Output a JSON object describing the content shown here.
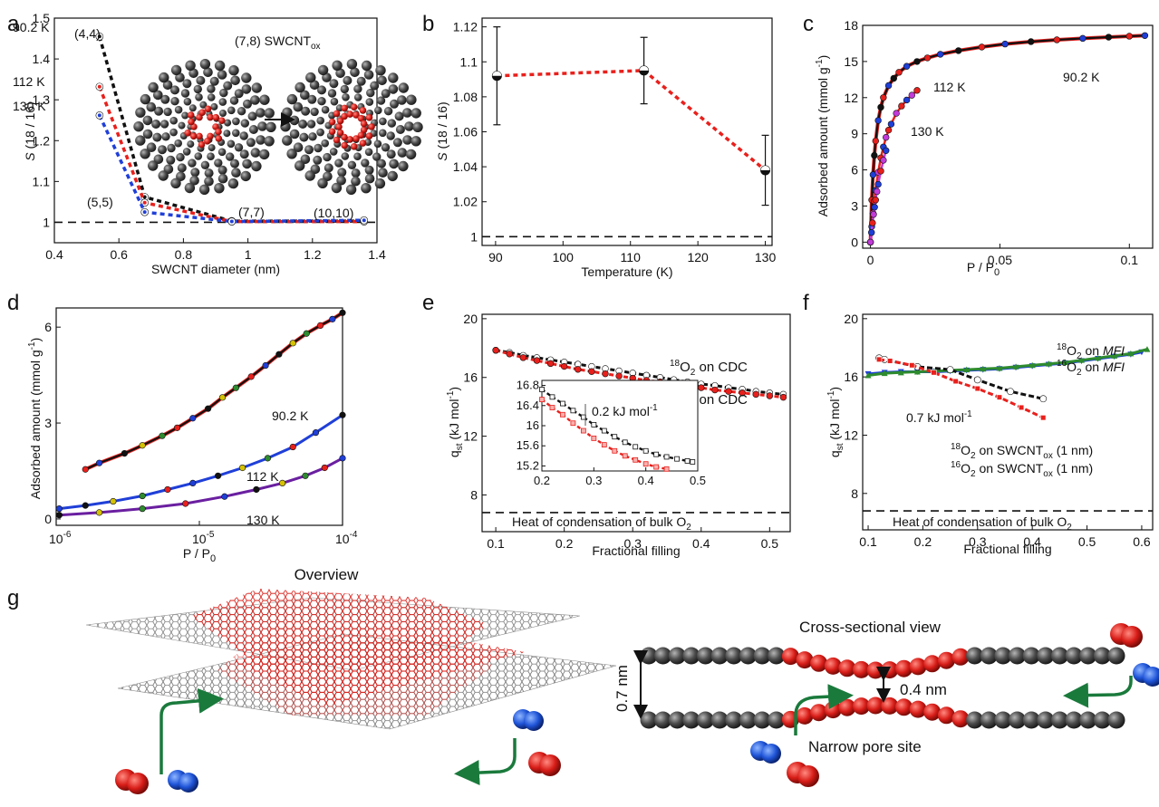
{
  "colors": {
    "black": "#111111",
    "red": "#e8201c",
    "blue": "#1f3fd8",
    "purple": "#6a1fa0",
    "magenta": "#c23ad9",
    "green": "#1c7a3a",
    "greenArrow": "#1a7a3c",
    "grey": "#8a8a8a",
    "lightGreen": "#2e8b2e"
  },
  "panels": {
    "a": {
      "letter": "a"
    },
    "b": {
      "letter": "b"
    },
    "c": {
      "letter": "c"
    },
    "d": {
      "letter": "d"
    },
    "e": {
      "letter": "e"
    },
    "f": {
      "letter": "f"
    },
    "g": {
      "letter": "g"
    }
  },
  "chart_data": [
    {
      "id": "a",
      "type": "scatter",
      "xlabel": "SWCNT diameter (nm)",
      "ylabel": "S (18 / 16)",
      "xlim": [
        0.4,
        1.4
      ],
      "ylim": [
        0.95,
        1.5
      ],
      "xticks": [
        "0.4",
        "0.6",
        "0.8",
        "1",
        "1.2",
        "1.4"
      ],
      "xtickvals": [
        0.4,
        0.6,
        0.8,
        1.0,
        1.2,
        1.4
      ],
      "yticks": [
        "1",
        "1.1",
        "1.2",
        "1.3",
        "1.4",
        "1.5"
      ],
      "ytickvals": [
        1.0,
        1.1,
        1.2,
        1.3,
        1.4,
        1.5
      ],
      "x": [
        0.54,
        0.68,
        0.95,
        1.36
      ],
      "series": [
        {
          "name": "90.2 K",
          "color": "#111111",
          "values": [
            1.455,
            1.062,
            1.003,
            1.003
          ]
        },
        {
          "name": "112 K",
          "color": "#e8201c",
          "values": [
            1.332,
            1.048,
            1.002,
            1.002
          ]
        },
        {
          "name": "130 K",
          "color": "#1f3fd8",
          "values": [
            1.262,
            1.025,
            1.002,
            1.005
          ]
        }
      ],
      "point_labels": [
        "(4,4)",
        "(5,5)",
        "(7,7)",
        "(10,10)"
      ],
      "reference_line": 1.0,
      "inset_label_main": "(7,8) SWCNT",
      "inset_label_sub": "ox"
    },
    {
      "id": "b",
      "type": "scatter",
      "xlabel": "Temperature (K)",
      "ylabel": "S (18 / 16)",
      "xlim": [
        88,
        131
      ],
      "ylim": [
        0.995,
        1.125
      ],
      "xticks": [
        "90",
        "100",
        "110",
        "120",
        "130"
      ],
      "xtickvals": [
        90,
        100,
        110,
        120,
        130
      ],
      "yticks": [
        "1",
        "1.02",
        "1.04",
        "1.06",
        "1.08",
        "1.1",
        "1.12"
      ],
      "ytickvals": [
        1.0,
        1.02,
        1.04,
        1.06,
        1.08,
        1.1,
        1.12
      ],
      "x": [
        90.2,
        112,
        130
      ],
      "values": [
        1.092,
        1.095,
        1.038
      ],
      "errors": [
        0.028,
        0.019,
        0.02
      ],
      "reference_line": 1.0
    },
    {
      "id": "c",
      "type": "line",
      "xlabel": "P / P",
      "xlabel_sub": "0",
      "ylabel": "Adsorbed amount (mmol g",
      "ylabel_sup": "-1",
      "ylabel_end": ")",
      "xlim": [
        -0.003,
        0.109
      ],
      "ylim": [
        -0.5,
        18
      ],
      "xticks": [
        "0",
        "0.05",
        "0.1"
      ],
      "xtickvals": [
        0,
        0.05,
        0.1
      ],
      "yticks": [
        "0",
        "3",
        "6",
        "9",
        "12",
        "15",
        "18"
      ],
      "ytickvals": [
        0,
        3,
        6,
        9,
        12,
        15,
        18
      ],
      "series": [
        {
          "name": "90.2 K",
          "color": "#111111",
          "x": [
            0,
            0.0005,
            0.001,
            0.0015,
            0.002,
            0.003,
            0.004,
            0.005,
            0.007,
            0.009,
            0.011,
            0.014,
            0.018,
            0.022,
            0.027,
            0.034,
            0.043,
            0.052,
            0.062,
            0.072,
            0.082,
            0.092,
            0.1,
            0.106
          ],
          "values": [
            0,
            3.5,
            5.6,
            7.2,
            8.4,
            10.1,
            11.2,
            12.0,
            13.0,
            13.6,
            14.1,
            14.6,
            15.0,
            15.3,
            15.6,
            15.9,
            16.2,
            16.45,
            16.65,
            16.8,
            16.92,
            17.02,
            17.1,
            17.15
          ]
        },
        {
          "name": "112 K",
          "color": "#e8201c",
          "x": [
            0,
            0.0005,
            0.001,
            0.0015,
            0.002,
            0.003,
            0.004,
            0.005,
            0.006,
            0.007,
            0.008,
            0.01,
            0.012,
            0.014,
            0.016,
            0.018
          ],
          "values": [
            0,
            1.3,
            2.4,
            3.4,
            4.3,
            5.8,
            7.0,
            7.9,
            8.7,
            9.3,
            9.8,
            10.7,
            11.3,
            11.8,
            12.2,
            12.6
          ]
        },
        {
          "name": "130 K",
          "color": "#c23ad9",
          "x": [
            0,
            0.0004,
            0.0008,
            0.0012,
            0.0016,
            0.002,
            0.0025,
            0.003,
            0.004,
            0.005,
            0.006
          ],
          "values": [
            0,
            0.8,
            1.6,
            2.3,
            2.9,
            3.5,
            4.2,
            4.8,
            5.9,
            6.8,
            7.6
          ]
        }
      ],
      "labels": [
        "90.2 K",
        "112 K",
        "130 K"
      ]
    },
    {
      "id": "d",
      "type": "line",
      "xlabel": "P / P",
      "xlabel_sub": "0",
      "ylabel": "Adsorbed amount (mmol g",
      "ylabel_sup": "-1",
      "ylabel_end": ")",
      "xscale": "log",
      "xlim": [
        1e-06,
        0.0001
      ],
      "ylim": [
        -0.2,
        6.6
      ],
      "xticks": [
        "10",
        "10",
        "10"
      ],
      "xtick_exps": [
        "-6",
        "-5",
        "-4"
      ],
      "xtickvals": [
        1e-06,
        1e-05,
        0.0001
      ],
      "yticks": [
        "0",
        "3",
        "6"
      ],
      "ytickvals": [
        0,
        3,
        6
      ],
      "series": [
        {
          "name": "90.2 K",
          "color": "#111111",
          "x": [
            1.6e-06,
            2e-06,
            3e-06,
            4e-06,
            5.5e-06,
            7e-06,
            9e-06,
            1.15e-05,
            1.45e-05,
            1.8e-05,
            2.3e-05,
            2.9e-05,
            3.6e-05,
            4.5e-05,
            5.6e-05,
            7e-05,
            8.5e-05,
            0.0001
          ],
          "values": [
            1.55,
            1.75,
            2.05,
            2.3,
            2.6,
            2.85,
            3.15,
            3.45,
            3.8,
            4.1,
            4.45,
            4.8,
            5.15,
            5.5,
            5.8,
            6.05,
            6.25,
            6.45
          ]
        },
        {
          "name": "112 K",
          "color": "#1f3fd8",
          "x": [
            1.05e-06,
            1.6e-06,
            2.5e-06,
            4e-06,
            6e-06,
            9e-06,
            1.35e-05,
            2e-05,
            3e-05,
            4.5e-05,
            6.5e-05,
            0.0001
          ],
          "values": [
            0.32,
            0.42,
            0.55,
            0.72,
            0.92,
            1.12,
            1.35,
            1.6,
            1.9,
            2.25,
            2.7,
            3.25
          ]
        },
        {
          "name": "130 K",
          "color": "#6a1fa0",
          "x": [
            1.05e-06,
            2e-06,
            4e-06,
            8e-06,
            1.5e-05,
            2.5e-05,
            3.8e-05,
            5.5e-05,
            7.5e-05,
            0.0001
          ],
          "values": [
            0.12,
            0.2,
            0.32,
            0.48,
            0.7,
            0.92,
            1.12,
            1.35,
            1.6,
            1.9
          ]
        }
      ],
      "labels": [
        "90.2 K",
        "112 K",
        "130 K"
      ]
    },
    {
      "id": "e",
      "type": "line",
      "xlabel": "Fractional filling",
      "ylabel": "q",
      "ylabel_sub": "st",
      "ylabel_end": " (kJ mol",
      "ylabel_sup": "-1",
      "ylabel_close": ")",
      "xlim": [
        0.08,
        0.53
      ],
      "ylim": [
        5.5,
        20.3
      ],
      "xticks": [
        "0.1",
        "0.2",
        "0.3",
        "0.4",
        "0.5"
      ],
      "xtickvals": [
        0.1,
        0.2,
        0.3,
        0.4,
        0.5
      ],
      "yticks": [
        "8",
        "12",
        "16",
        "20"
      ],
      "ytickvals": [
        8,
        12,
        16,
        20
      ],
      "series": [
        {
          "name": "18O2 on CDC",
          "color": "#111111",
          "x": [
            0.1,
            0.12,
            0.14,
            0.16,
            0.18,
            0.2,
            0.22,
            0.24,
            0.26,
            0.28,
            0.3,
            0.32,
            0.34,
            0.36,
            0.38,
            0.4,
            0.42,
            0.44,
            0.46,
            0.48,
            0.5,
            0.52
          ],
          "values": [
            17.85,
            17.7,
            17.5,
            17.35,
            17.2,
            17.05,
            16.9,
            16.75,
            16.6,
            16.45,
            16.3,
            16.15,
            16.0,
            15.85,
            15.7,
            15.55,
            15.45,
            15.3,
            15.2,
            15.05,
            14.95,
            14.85
          ]
        },
        {
          "name": "16O2 on CDC",
          "color": "#e8201c",
          "x": [
            0.1,
            0.12,
            0.14,
            0.16,
            0.18,
            0.2,
            0.22,
            0.24,
            0.26,
            0.28,
            0.3,
            0.32,
            0.34,
            0.36,
            0.38,
            0.4,
            0.42,
            0.44,
            0.46,
            0.48,
            0.5,
            0.52
          ],
          "values": [
            17.85,
            17.6,
            17.35,
            17.15,
            16.95,
            16.75,
            16.55,
            16.4,
            16.25,
            16.1,
            15.95,
            15.8,
            15.7,
            15.55,
            15.4,
            15.3,
            15.15,
            15.05,
            14.95,
            14.85,
            14.75,
            14.65
          ]
        }
      ],
      "legend": [
        {
          "sup": "18",
          "main": "O",
          "sub": "2",
          "tail": " on CDC"
        },
        {
          "sup": "16",
          "main": "O",
          "sub": "2",
          "tail": " on CDC"
        }
      ],
      "reference_line": 6.8,
      "reference_label": "Heat of condensation of bulk O",
      "reference_label_sub": "2",
      "inset": {
        "xlim": [
          0.2,
          0.5
        ],
        "ylim": [
          15.1,
          16.9
        ],
        "xticks": [
          "0.2",
          "0.3",
          "0.4",
          "0.5"
        ],
        "xtickvals": [
          0.2,
          0.3,
          0.4,
          0.5
        ],
        "yticks": [
          "15.2",
          "15.6",
          "16",
          "16.4",
          "16.8"
        ],
        "ytickvals": [
          15.2,
          15.6,
          16.0,
          16.4,
          16.8
        ],
        "series": [
          {
            "color": "#111111",
            "x": [
              0.2,
              0.22,
              0.24,
              0.26,
              0.28,
              0.3,
              0.32,
              0.34,
              0.36,
              0.38,
              0.4,
              0.42,
              0.44,
              0.46,
              0.48,
              0.49
            ],
            "values": [
              16.72,
              16.57,
              16.44,
              16.3,
              16.17,
              16.02,
              15.9,
              15.78,
              15.67,
              15.58,
              15.5,
              15.43,
              15.38,
              15.34,
              15.3,
              15.28
            ]
          },
          {
            "color": "#e8201c",
            "x": [
              0.2,
              0.22,
              0.24,
              0.26,
              0.28,
              0.3,
              0.32,
              0.34,
              0.36,
              0.38,
              0.4,
              0.42,
              0.44
            ],
            "values": [
              16.52,
              16.36,
              16.22,
              16.05,
              15.9,
              15.75,
              15.62,
              15.5,
              15.4,
              15.32,
              15.24,
              15.18,
              15.14
            ]
          }
        ],
        "delta_label": "0.2 kJ mol",
        "delta_sup": "-1"
      }
    },
    {
      "id": "f",
      "type": "line",
      "xlabel": "Fractional filling",
      "ylabel": "q",
      "ylabel_sub": "st",
      "ylabel_end": " (kJ mol",
      "ylabel_sup": "-1",
      "ylabel_close": ")",
      "xlim": [
        0.09,
        0.62
      ],
      "ylim": [
        5.5,
        20.3
      ],
      "xticks": [
        "0.1",
        "0.2",
        "0.3",
        "0.4",
        "0.5",
        "0.6"
      ],
      "xtickvals": [
        0.1,
        0.2,
        0.3,
        0.4,
        0.5,
        0.6
      ],
      "yticks": [
        "8",
        "12",
        "16",
        "20"
      ],
      "ytickvals": [
        8,
        12,
        16,
        20
      ],
      "series": [
        {
          "name": "18O2 on MFI",
          "color": "#1f3fd8",
          "x": [
            0.1,
            0.13,
            0.16,
            0.19,
            0.22,
            0.25,
            0.28,
            0.31,
            0.34,
            0.37,
            0.4,
            0.43,
            0.46,
            0.49,
            0.52,
            0.55,
            0.58,
            0.6
          ],
          "values": [
            16.2,
            16.3,
            16.35,
            16.35,
            16.35,
            16.4,
            16.45,
            16.5,
            16.55,
            16.65,
            16.75,
            16.85,
            16.95,
            17.1,
            17.25,
            17.4,
            17.55,
            17.7
          ]
        },
        {
          "name": "16O2 on MFI",
          "color": "#2e8b2e",
          "x": [
            0.1,
            0.13,
            0.16,
            0.19,
            0.22,
            0.25,
            0.28,
            0.31,
            0.34,
            0.37,
            0.4,
            0.43,
            0.46,
            0.49,
            0.52,
            0.55,
            0.58,
            0.61
          ],
          "values": [
            16.1,
            16.25,
            16.3,
            16.35,
            16.4,
            16.45,
            16.5,
            16.55,
            16.6,
            16.7,
            16.8,
            16.9,
            17.0,
            17.15,
            17.3,
            17.45,
            17.6,
            17.9
          ]
        },
        {
          "name": "18O2 on SWCNTox (1 nm)",
          "color": "#111111",
          "x": [
            0.12,
            0.13,
            0.19,
            0.25,
            0.3,
            0.36,
            0.42
          ],
          "values": [
            17.3,
            17.2,
            16.7,
            16.5,
            15.8,
            15.0,
            14.5
          ]
        },
        {
          "name": "16O2 on SWCNTox (1 nm)",
          "color": "#e8201c",
          "x": [
            0.12,
            0.14,
            0.18,
            0.22,
            0.26,
            0.3,
            0.34,
            0.38,
            0.42
          ],
          "values": [
            17.2,
            17.1,
            16.8,
            16.3,
            15.7,
            15.2,
            14.6,
            13.9,
            13.2
          ]
        }
      ],
      "legend": [
        {
          "sup": "18",
          "main": "O",
          "sub": "2",
          "tail": " on ",
          "em": "MFI",
          "color": "#1f3fd8"
        },
        {
          "sup": "16",
          "main": "O",
          "sub": "2",
          "tail": " on ",
          "em": "MFI",
          "color": "#1c7a3a"
        },
        {
          "sup": "18",
          "main": "O",
          "sub": "2",
          "tail": " on SWCNT",
          "sub2": "ox",
          "tail2": " (1 nm)",
          "color": "#111111"
        },
        {
          "sup": "16",
          "main": "O",
          "sub": "2",
          "tail": " on SWCNT",
          "sub2": "ox",
          "tail2": " (1 nm)",
          "color": "#e8201c"
        }
      ],
      "delta_label": "0.7 kJ mol",
      "delta_sup": "-1",
      "reference_line": 6.8,
      "reference_label": "Heat of condensation of bulk O",
      "reference_label_sub": "2"
    }
  ],
  "panel_g": {
    "overview_title": "Overview",
    "cross_title": "Cross-sectional view",
    "gap_wide": "0.7 nm",
    "gap_narrow": "0.4 nm",
    "site_label": "Narrow pore site"
  }
}
